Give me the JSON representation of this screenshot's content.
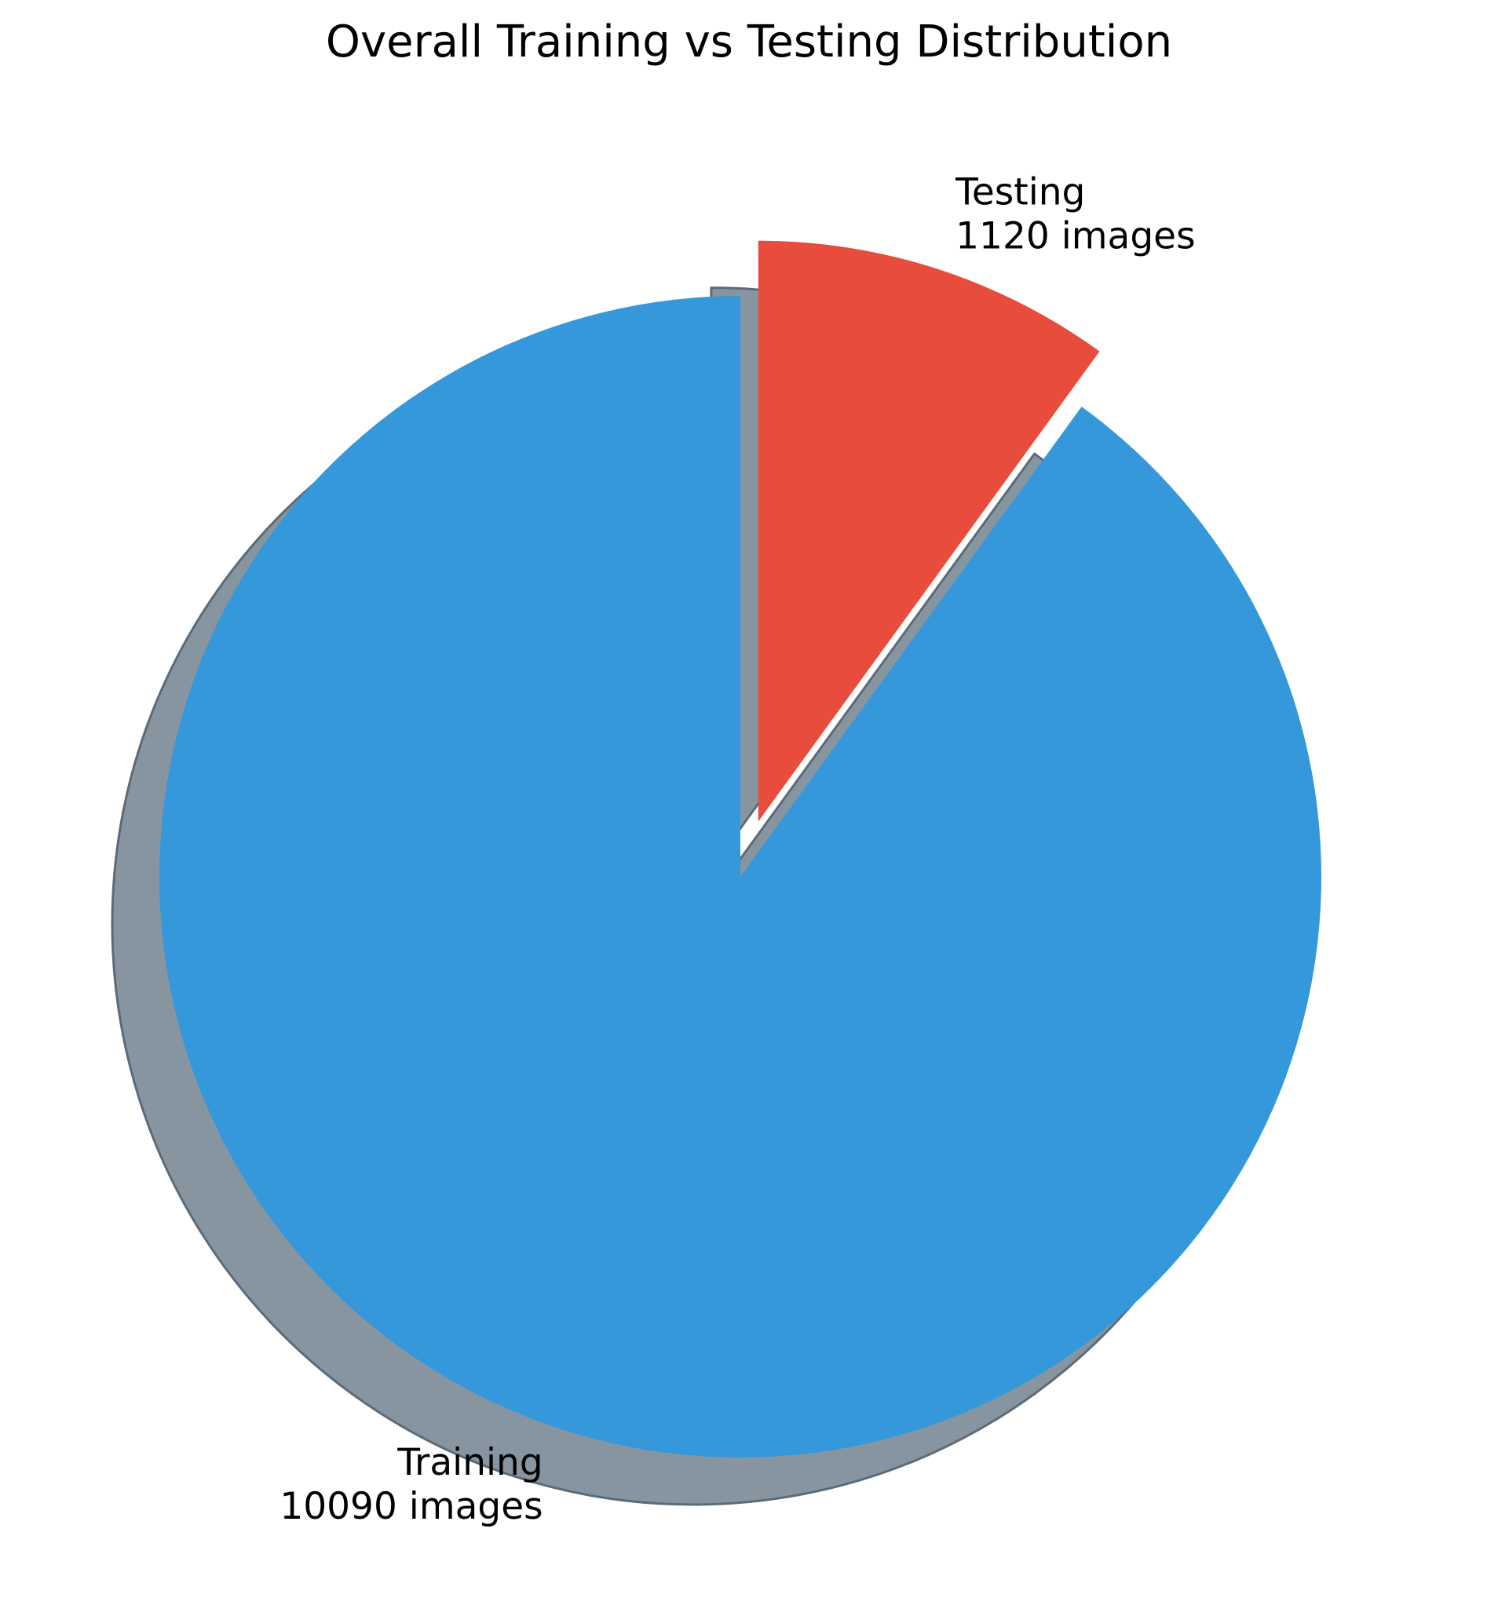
{
  "chart_data": {
    "type": "pie",
    "title": "Overall Training vs Testing Distribution",
    "start_angle_deg": 90,
    "direction": "clockwise",
    "shadow": true,
    "slices": [
      {
        "name": "Testing",
        "value": 1120,
        "label_line1": "Testing",
        "label_line2": "1120 images",
        "color": "#e74c3c",
        "exploded": true
      },
      {
        "name": "Training",
        "value": 10090,
        "label_line1": "Training",
        "label_line2": "10090 images",
        "color": "#3498db",
        "exploded": false
      }
    ],
    "shadow_color": "#8795a1",
    "shadow_edge_color": "#5c6b78"
  }
}
